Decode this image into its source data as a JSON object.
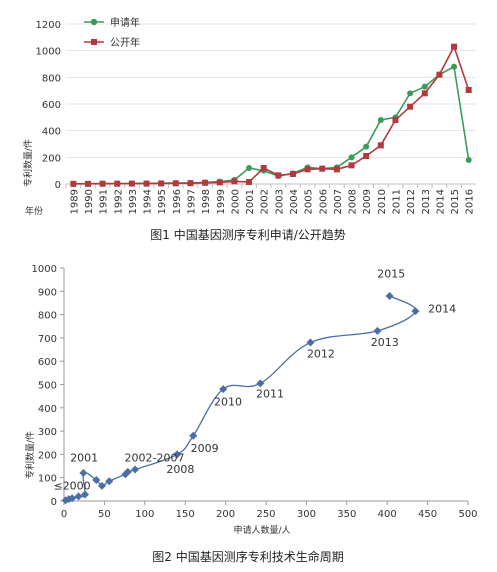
{
  "chart_data": [
    {
      "type": "line",
      "caption": "图1  中国基因测序专利申请/公开趋势",
      "ylabel": "专利数量/件",
      "xlabel": "年份",
      "ylim": [
        0,
        1200
      ],
      "yticks": [
        "0",
        "200",
        "400",
        "600",
        "800",
        "1000",
        "1200"
      ],
      "categories": [
        "1989",
        "1990",
        "1991",
        "1992",
        "1993",
        "1994",
        "1995",
        "1996",
        "1997",
        "1998",
        "1999",
        "2000",
        "2001",
        "2002",
        "2003",
        "2004",
        "2005",
        "2006",
        "2007",
        "2008",
        "2009",
        "2010",
        "2011",
        "2012",
        "2013",
        "2014",
        "2015",
        "2016"
      ],
      "legend_position": "top-left",
      "series": [
        {
          "name": "申请年",
          "color": "#3e9a5c",
          "marker": "circle",
          "values": [
            2,
            2,
            3,
            3,
            4,
            5,
            6,
            7,
            8,
            12,
            18,
            30,
            120,
            100,
            60,
            80,
            125,
            115,
            125,
            200,
            280,
            480,
            500,
            680,
            730,
            820,
            880,
            180
          ]
        },
        {
          "name": "公开年",
          "color": "#b03a3e",
          "marker": "square",
          "values": [
            1,
            1,
            2,
            2,
            3,
            3,
            4,
            5,
            6,
            9,
            12,
            20,
            15,
            120,
            65,
            75,
            110,
            115,
            110,
            140,
            210,
            290,
            480,
            580,
            680,
            820,
            1030,
            705
          ]
        }
      ]
    },
    {
      "type": "scatter",
      "caption": "图2  中国基因测序专利技术生命周期",
      "ylabel": "专利数量/件",
      "xlabel": "申请人数量/人",
      "xlim": [
        0,
        500
      ],
      "ylim": [
        0,
        1000
      ],
      "xticks": [
        "0",
        "50",
        "100",
        "150",
        "200",
        "250",
        "300",
        "350",
        "400",
        "450",
        "500"
      ],
      "yticks": [
        "0",
        "100",
        "200",
        "300",
        "400",
        "500",
        "600",
        "700",
        "800",
        "900",
        "1000"
      ],
      "color": "#4a6fa5",
      "points": [
        {
          "x": 2,
          "y": 3
        },
        {
          "x": 6,
          "y": 8
        },
        {
          "x": 10,
          "y": 12
        },
        {
          "x": 18,
          "y": 20
        },
        {
          "x": 26,
          "y": 28
        },
        {
          "x": 24,
          "y": 120
        },
        {
          "x": 40,
          "y": 90
        },
        {
          "x": 47,
          "y": 65
        },
        {
          "x": 56,
          "y": 85
        },
        {
          "x": 76,
          "y": 115
        },
        {
          "x": 79,
          "y": 125
        },
        {
          "x": 88,
          "y": 135
        },
        {
          "x": 140,
          "y": 200
        },
        {
          "x": 160,
          "y": 280
        },
        {
          "x": 197,
          "y": 480
        },
        {
          "x": 243,
          "y": 505
        },
        {
          "x": 305,
          "y": 680
        },
        {
          "x": 388,
          "y": 730
        },
        {
          "x": 435,
          "y": 815
        },
        {
          "x": 403,
          "y": 880
        }
      ],
      "labels": [
        {
          "text": "≤2000",
          "x": 10,
          "y": 50
        },
        {
          "text": "2001",
          "x": 25,
          "y": 170
        },
        {
          "text": "2002-2007",
          "x": 112,
          "y": 170
        },
        {
          "text": "2008",
          "x": 144,
          "y": 120
        },
        {
          "text": "2009",
          "x": 174,
          "y": 210
        },
        {
          "text": "2010",
          "x": 203,
          "y": 410
        },
        {
          "text": "2011",
          "x": 255,
          "y": 445
        },
        {
          "text": "2012",
          "x": 318,
          "y": 615
        },
        {
          "text": "2013",
          "x": 397,
          "y": 665
        },
        {
          "text": "2014",
          "x": 468,
          "y": 810
        },
        {
          "text": "2015",
          "x": 405,
          "y": 960
        }
      ]
    }
  ]
}
